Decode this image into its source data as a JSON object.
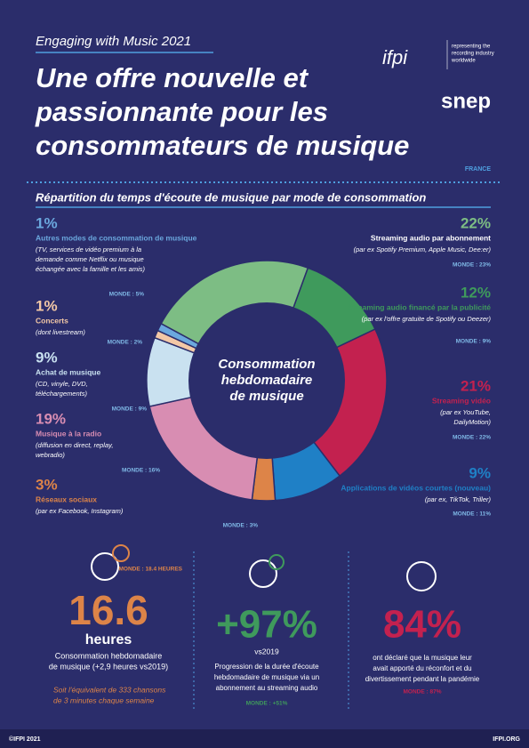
{
  "header": {
    "kicker": "Engaging with Music 2021",
    "title_lines": [
      "Une offre nouvelle et",
      "passionnante pour les",
      "consommateurs de musique"
    ],
    "ifpi": "ifpi",
    "ifpi_tagline": [
      "representing the",
      "recording industry",
      "worldwide"
    ],
    "snep": "snep",
    "country": "FRANCE"
  },
  "chart_data": {
    "type": "donut",
    "title": "Répartition du temps d'écoute de musique par mode de consommation",
    "center_label": [
      "Consommation",
      "hebdomadaire",
      "de musique"
    ],
    "series": [
      {
        "name": "Streaming audio financé par la publicité",
        "value": 12,
        "value_label": "12%",
        "color": "#3f9a5c",
        "description": [
          "(par ex l'offre gratuite de Spotify ou Deezer)"
        ],
        "world": "MONDE : 9%"
      },
      {
        "name": "Streaming vidéo",
        "value": 21,
        "value_label": "21%",
        "color": "#c3214f",
        "description": [
          "(par ex YouTube,",
          "DailyMotion)"
        ],
        "world": "MONDE : 22%"
      },
      {
        "name": "Applications de vidéos courtes (nouveau)",
        "value": 9,
        "value_label": "9%",
        "color": "#1f80c6",
        "description": [
          "(par ex, TikTok, Triller)"
        ],
        "world": "MONDE : 11%"
      },
      {
        "name": "Réseaux sociaux",
        "value": 3,
        "value_label": "3%",
        "color": "#dd8448",
        "description": [
          "(par ex Facebook, Instagram)"
        ],
        "world": "MONDE : 3%"
      },
      {
        "name": "Musique à la radio",
        "value": 19,
        "value_label": "19%",
        "color": "#d88db2",
        "description": [
          "(diffusion en direct, replay,",
          "webradio)"
        ],
        "world": "MONDE : 16%"
      },
      {
        "name": "Achat de musique",
        "value": 9,
        "value_label": "9%",
        "color": "#c9e1f0",
        "description": [
          "(CD, vinyle, DVD,",
          "téléchargements)"
        ],
        "world": "MONDE : 9%"
      },
      {
        "name": "Concerts",
        "value": 1,
        "value_label": "1%",
        "color": "#f3c8a6",
        "description": [
          "(dont livestream)"
        ],
        "world": "MONDE : 2%"
      },
      {
        "name": "Autres modes de consommation de musique",
        "value": 1,
        "value_label": "1%",
        "color": "#6ba8de",
        "description": [
          "(TV, services de vidéo premium à la",
          "demande comme Netflix ou musique",
          "échangée avec la famille et les amis)"
        ],
        "world": "MONDE : 5%"
      },
      {
        "name": "Streaming audio par abonnement",
        "value": 22,
        "value_label": "22%",
        "color": "#7dbd84",
        "description": [
          "(par ex Spotify Premium, Apple Music, Dee:er)"
        ],
        "world": "MONDE : 23%"
      }
    ]
  },
  "stats": [
    {
      "world": "MONDE : 18.4 HEURES",
      "big": "16.6",
      "unit": "heures",
      "text": [
        "Consommation hebdomadaire",
        "de musique (+2,9 heures vs2019)"
      ],
      "note": [
        "Soit l'équivalent de 333 chansons",
        "de 3 minutes chaque semaine"
      ]
    },
    {
      "big": "+97%",
      "unit": "vs2019",
      "text": [
        "Progression de la durée d'écoute",
        "hebdomadaire de musique via un",
        "abonnement au streaming audio"
      ],
      "world": "MONDE : +51%"
    },
    {
      "big": "84%",
      "text": [
        "ont déclaré que la musique leur",
        "avait apporté  du réconfort et du",
        "divertissement pendant la pandémie"
      ],
      "world": "MONDE : 87%"
    }
  ],
  "footer": {
    "left": "©IFPI 2021",
    "right": "IFPI.ORG"
  }
}
